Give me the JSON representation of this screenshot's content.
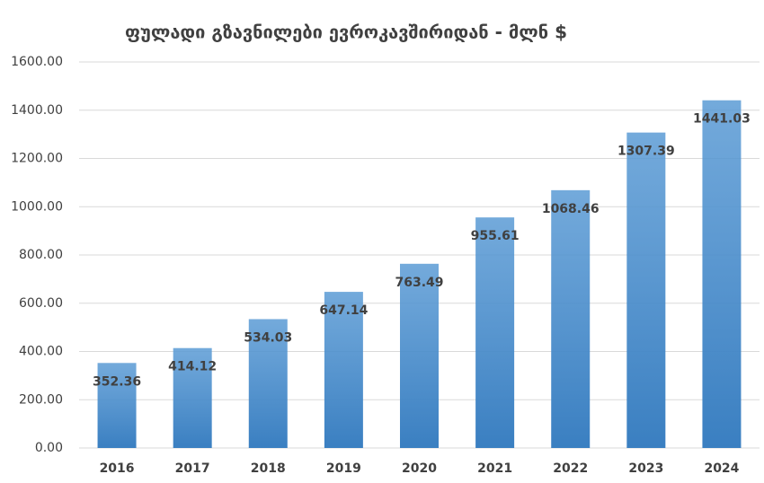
{
  "chart_data": {
    "type": "bar",
    "title": "ფულადი გზავნილები ევროკავშირიდან - მლნ $",
    "categories": [
      "2016",
      "2017",
      "2018",
      "2019",
      "2020",
      "2021",
      "2022",
      "2023",
      "2024"
    ],
    "values": [
      352.36,
      414.12,
      534.03,
      647.14,
      763.49,
      955.61,
      1068.46,
      1307.39,
      1441.03
    ],
    "color": "#5b9bd5",
    "ylim": [
      0,
      1600
    ],
    "yticks": [
      {
        "value": 0,
        "label": "0.00"
      },
      {
        "value": 200,
        "label": "200.00"
      },
      {
        "value": 400,
        "label": "400.00"
      },
      {
        "value": 600,
        "label": "600.00"
      },
      {
        "value": 800,
        "label": "800.00"
      },
      {
        "value": 1000,
        "label": "1000.00"
      },
      {
        "value": 1200,
        "label": "1200.00"
      },
      {
        "value": 1400,
        "label": "1400.00"
      },
      {
        "value": 1600,
        "label": "1600.00"
      }
    ],
    "grid": true
  }
}
